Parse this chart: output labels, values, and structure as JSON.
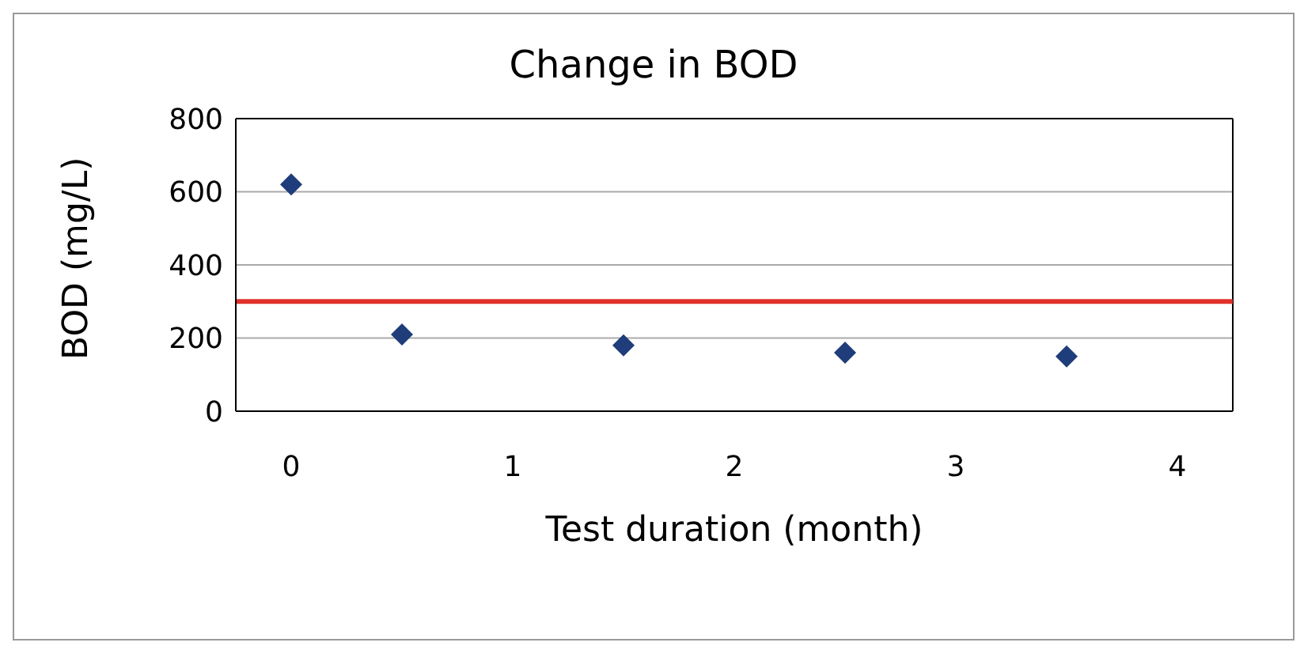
{
  "chart_data": {
    "type": "scatter",
    "title": "Change in BOD",
    "xlabel": "Test duration (month)",
    "ylabel": "BOD (mg/L)",
    "x": [
      0,
      0.5,
      1.5,
      2.5,
      3.5
    ],
    "series": [
      {
        "color": "#1f3d7a",
        "values": [
          620,
          210,
          180,
          160,
          150
        ]
      }
    ],
    "xlim": [
      -0.25,
      4.25
    ],
    "xticks": [
      0,
      1,
      2,
      3,
      4
    ],
    "ylim": [
      0,
      800
    ],
    "yticks": [
      0,
      200,
      400,
      600,
      800
    ],
    "grid": "y",
    "marker": "diamond",
    "ref_lines": [
      {
        "axis": "y",
        "value": 300,
        "color": "#e0302a"
      }
    ]
  }
}
